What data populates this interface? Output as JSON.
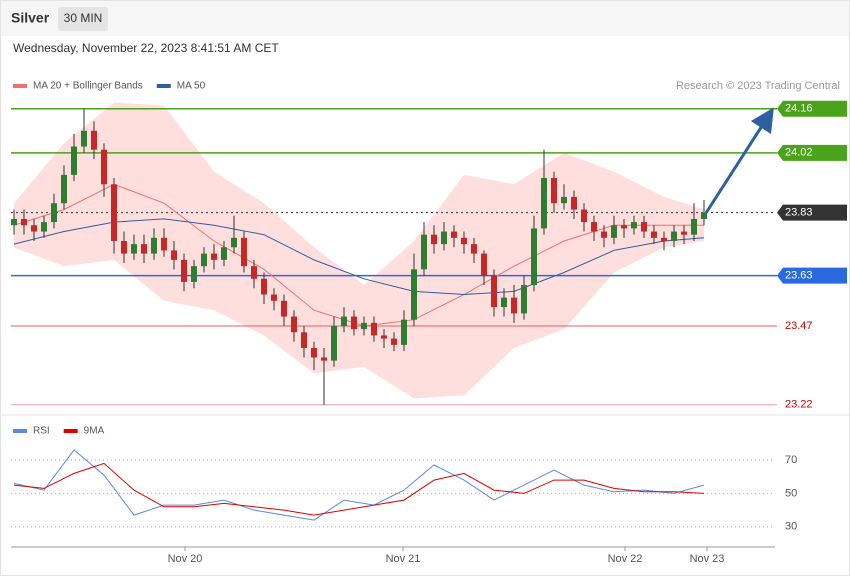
{
  "header": {
    "instrument": "Silver",
    "timeframe": "30 MIN",
    "timestamp": "Wednesday, November 22, 2023 8:41:51 AM CET"
  },
  "chart_data": [
    {
      "type": "candlestick",
      "source": "Research © 2023 Trading Central",
      "xlim": [
        -0.3,
        76.1
      ],
      "ylim": [
        23.2,
        24.21
      ],
      "up_color": "#2e7d32",
      "down_color": "#c62828",
      "open": [
        23.79,
        23.81,
        23.79,
        23.77,
        23.8,
        23.86,
        23.95,
        24.04,
        24.09,
        24.03,
        23.92,
        23.74,
        23.7,
        23.73,
        23.7,
        23.75,
        23.71,
        23.68,
        23.61,
        23.66,
        23.7,
        23.68,
        23.72,
        23.75,
        23.66,
        23.62,
        23.57,
        23.55,
        23.5,
        23.45,
        23.4,
        23.37,
        23.36,
        23.47,
        23.5,
        23.46,
        23.48,
        23.44,
        23.43,
        23.41,
        23.49,
        23.65,
        23.76,
        23.73,
        23.77,
        23.75,
        23.73,
        23.7,
        23.63,
        23.53,
        23.56,
        23.51,
        23.6,
        23.78,
        23.94,
        23.86,
        23.88,
        23.84,
        23.8,
        23.77,
        23.75,
        23.79,
        23.78,
        23.8,
        23.77,
        23.75,
        23.74,
        23.77,
        23.76,
        23.81
      ],
      "high": [
        23.84,
        23.84,
        23.81,
        23.82,
        23.89,
        23.98,
        24.08,
        24.16,
        24.12,
        24.05,
        23.94,
        23.77,
        23.76,
        23.76,
        23.78,
        23.78,
        23.74,
        23.7,
        23.68,
        23.72,
        23.73,
        23.74,
        23.82,
        23.77,
        23.68,
        23.64,
        23.59,
        23.57,
        23.52,
        23.47,
        23.42,
        23.4,
        23.5,
        23.53,
        23.52,
        23.5,
        23.5,
        23.46,
        23.45,
        23.52,
        23.7,
        23.8,
        23.79,
        23.8,
        23.79,
        23.77,
        23.75,
        23.71,
        23.65,
        23.59,
        23.6,
        23.63,
        23.82,
        24.03,
        23.96,
        23.92,
        23.9,
        23.86,
        23.82,
        23.79,
        23.82,
        23.81,
        23.82,
        23.82,
        23.79,
        23.77,
        23.79,
        23.79,
        23.86,
        23.87
      ],
      "low": [
        23.76,
        23.76,
        23.74,
        23.75,
        23.78,
        23.84,
        23.93,
        24.02,
        24.0,
        23.88,
        23.7,
        23.67,
        23.68,
        23.67,
        23.68,
        23.69,
        23.65,
        23.58,
        23.59,
        23.64,
        23.65,
        23.66,
        23.7,
        23.64,
        23.59,
        23.54,
        23.52,
        23.47,
        23.42,
        23.37,
        23.33,
        23.22,
        23.34,
        23.45,
        23.44,
        23.44,
        23.42,
        23.4,
        23.39,
        23.39,
        23.47,
        23.63,
        23.7,
        23.71,
        23.72,
        23.7,
        23.67,
        23.6,
        23.5,
        23.5,
        23.48,
        23.49,
        23.58,
        23.76,
        23.83,
        23.84,
        23.81,
        23.77,
        23.74,
        23.72,
        23.73,
        23.75,
        23.76,
        23.75,
        23.73,
        23.71,
        23.72,
        23.73,
        23.74,
        23.79
      ],
      "close": [
        23.81,
        23.79,
        23.77,
        23.8,
        23.86,
        23.95,
        24.04,
        24.09,
        24.03,
        23.92,
        23.74,
        23.7,
        23.73,
        23.7,
        23.75,
        23.71,
        23.68,
        23.61,
        23.66,
        23.7,
        23.68,
        23.72,
        23.75,
        23.66,
        23.62,
        23.57,
        23.55,
        23.5,
        23.45,
        23.4,
        23.37,
        23.36,
        23.47,
        23.5,
        23.46,
        23.48,
        23.44,
        23.43,
        23.41,
        23.49,
        23.65,
        23.76,
        23.73,
        23.77,
        23.75,
        23.73,
        23.7,
        23.63,
        23.53,
        23.56,
        23.51,
        23.6,
        23.78,
        23.94,
        23.86,
        23.88,
        23.84,
        23.8,
        23.77,
        23.75,
        23.79,
        23.78,
        23.8,
        23.77,
        23.75,
        23.74,
        23.77,
        23.76,
        23.81,
        23.83
      ],
      "series": [
        {
          "name": "MA 20 + Bollinger Bands",
          "color": "#f07070",
          "band_color": "#ffdede",
          "x": [
            0,
            5,
            10,
            15,
            20,
            25,
            30,
            35,
            40,
            45,
            50,
            55,
            60,
            65,
            69
          ],
          "values": [
            23.79,
            23.84,
            23.92,
            23.86,
            23.74,
            23.65,
            23.52,
            23.47,
            23.49,
            23.57,
            23.66,
            23.74,
            23.79,
            23.79,
            23.79
          ],
          "upper": [
            23.86,
            24.05,
            24.18,
            24.17,
            23.96,
            23.86,
            23.72,
            23.6,
            23.74,
            23.95,
            23.92,
            24.02,
            23.96,
            23.88,
            23.84
          ],
          "lower": [
            23.72,
            23.66,
            23.68,
            23.55,
            23.52,
            23.44,
            23.32,
            23.34,
            23.24,
            23.25,
            23.4,
            23.46,
            23.64,
            23.72,
            23.74
          ]
        },
        {
          "name": "MA 50",
          "color": "#2e5f9e",
          "x": [
            0,
            5,
            10,
            15,
            20,
            25,
            30,
            35,
            40,
            45,
            50,
            55,
            60,
            65,
            69
          ],
          "values": [
            23.73,
            23.77,
            23.8,
            23.81,
            23.79,
            23.76,
            23.68,
            23.62,
            23.58,
            23.57,
            23.58,
            23.64,
            23.71,
            23.74,
            23.75
          ]
        }
      ],
      "levels": [
        {
          "value": 24.16,
          "color": "#4aa31a",
          "boxed": true
        },
        {
          "value": 24.02,
          "color": "#4aa31a",
          "boxed": true
        },
        {
          "value": 23.83,
          "color": "#333333",
          "boxed": true,
          "dashed": true
        },
        {
          "value": 23.63,
          "color": "#2a6ae0",
          "boxed": true
        },
        {
          "value": 23.47,
          "color": "#e06060",
          "boxed": false
        },
        {
          "value": 23.22,
          "color": "#f0a0a0",
          "boxed": false
        }
      ]
    },
    {
      "type": "line",
      "xlim": [
        -0.3,
        76.1
      ],
      "ylim": [
        20,
        85
      ],
      "yticks": [
        30,
        50,
        70
      ],
      "grid": true,
      "xticks": [
        {
          "value": 17.1,
          "label": "Nov 20"
        },
        {
          "value": 38.9,
          "label": "Nov 21"
        },
        {
          "value": 61.1,
          "label": "Nov 22"
        },
        {
          "value": 69.3,
          "label": "Nov 23"
        }
      ],
      "series": [
        {
          "name": "RSI",
          "color": "#5b8ae0",
          "x": [
            0,
            3,
            6,
            9,
            12,
            15,
            18,
            21,
            24,
            27,
            30,
            33,
            36,
            39,
            42,
            45,
            48,
            51,
            54,
            57,
            60,
            63,
            66,
            69
          ],
          "values": [
            56,
            52,
            76,
            61,
            37,
            43,
            43,
            46,
            40,
            37,
            34,
            46,
            43,
            52,
            67,
            58,
            46,
            55,
            64,
            55,
            51,
            52,
            50,
            55
          ]
        },
        {
          "name": "9MA",
          "color": "#e00000",
          "x": [
            0,
            3,
            6,
            9,
            12,
            15,
            18,
            21,
            24,
            27,
            30,
            33,
            36,
            39,
            42,
            45,
            48,
            51,
            54,
            57,
            60,
            63,
            66,
            69
          ],
          "values": [
            55,
            53,
            62,
            68,
            52,
            42,
            42,
            44,
            42,
            40,
            37,
            40,
            43,
            46,
            58,
            62,
            52,
            50,
            58,
            58,
            53,
            51,
            51,
            50
          ]
        }
      ]
    }
  ]
}
